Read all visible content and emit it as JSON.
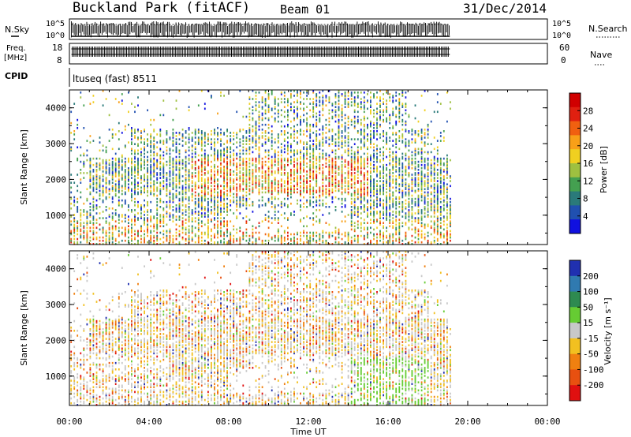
{
  "header": {
    "station": "Buckland Park (fitACF)",
    "beam": "Beam 01",
    "date": "31/Dec/2014"
  },
  "panels": {
    "noise": {
      "left_label": "N.Sky",
      "left_ticks": [
        "10^5",
        "10^0"
      ],
      "right_ticks": [
        "10^5",
        "10^0"
      ],
      "right_label": "N.Search"
    },
    "freq": {
      "left_label_1": "Freq.",
      "left_label_2": "[MHz]",
      "left_ticks": [
        "18",
        "8"
      ],
      "right_ticks": [
        "60",
        "0"
      ],
      "right_label": "Nave"
    },
    "cpid": {
      "label": "CPID",
      "program": "ltuseq (fast) 8511"
    }
  },
  "chart_data": [
    {
      "type": "heatmap",
      "name": "power",
      "ylabel": "Slant Range [km]",
      "xlabel": "Time UT",
      "x_ticks": [
        "00:00",
        "04:00",
        "08:00",
        "12:00",
        "16:00",
        "20:00",
        "00:00"
      ],
      "y_ticks": [
        "1000",
        "2000",
        "3000",
        "4000"
      ],
      "xlim_hours": [
        0,
        24
      ],
      "ylim_km": [
        180,
        4500
      ],
      "data_end_hours": 19.1,
      "colorbar": {
        "label": "Power [dB]",
        "ticks": [
          "4",
          "8",
          "12",
          "16",
          "20",
          "24",
          "28"
        ],
        "colors": [
          "#1010e0",
          "#2050b0",
          "#2a7a7a",
          "#44a050",
          "#9ec040",
          "#f0d020",
          "#f8a018",
          "#f06010",
          "#e02010",
          "#d00000"
        ]
      }
    },
    {
      "type": "heatmap",
      "name": "velocity",
      "ylabel": "Slant Range [km]",
      "xlabel": "Time UT",
      "x_ticks": [
        "00:00",
        "04:00",
        "08:00",
        "12:00",
        "16:00",
        "20:00",
        "00:00"
      ],
      "y_ticks": [
        "1000",
        "2000",
        "3000",
        "4000"
      ],
      "xlim_hours": [
        0,
        24
      ],
      "ylim_km": [
        180,
        4500
      ],
      "data_end_hours": 19.1,
      "colorbar": {
        "label": "Velocity [m s⁻¹]",
        "ticks": [
          "200",
          "100",
          "50",
          "15",
          "-15",
          "-50",
          "-100",
          "-200"
        ],
        "colors": [
          "#2030b0",
          "#307ab0",
          "#2e8a50",
          "#66cc33",
          "#c8c8c8",
          "#f2c020",
          "#f08010",
          "#e85010",
          "#e01010"
        ]
      }
    }
  ],
  "time_axis_label": "Time UT"
}
